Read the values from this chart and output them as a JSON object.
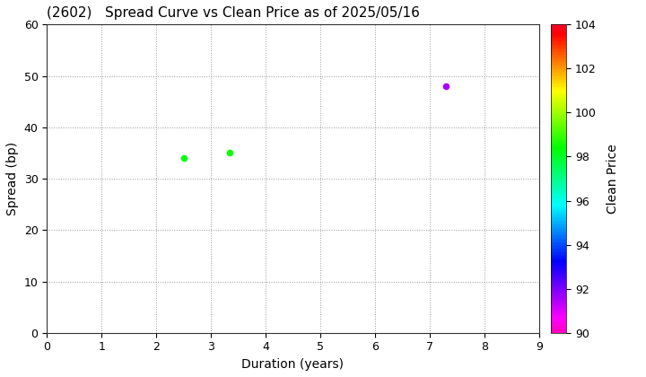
{
  "title": "(2602)   Spread Curve vs Clean Price as of 2025/05/16",
  "xlabel": "Duration (years)",
  "ylabel": "Spread (bp)",
  "colorbar_label": "Clean Price",
  "xlim": [
    0,
    9
  ],
  "ylim": [
    0,
    60
  ],
  "xticks": [
    0,
    1,
    2,
    3,
    4,
    5,
    6,
    7,
    8,
    9
  ],
  "yticks": [
    0,
    10,
    20,
    30,
    40,
    50,
    60
  ],
  "colorbar_min": 90,
  "colorbar_max": 104,
  "colorbar_ticks": [
    90,
    92,
    94,
    96,
    98,
    100,
    102,
    104
  ],
  "points": [
    {
      "duration": 2.5,
      "spread": 34,
      "clean_price": 98.3
    },
    {
      "duration": 3.35,
      "spread": 35,
      "clean_price": 98.5
    },
    {
      "duration": 7.3,
      "spread": 48,
      "clean_price": 91.5
    }
  ],
  "marker_size": 20,
  "background_color": "#ffffff",
  "grid_color": "#999999",
  "grid_style": "dotted",
  "figsize": [
    7.2,
    4.2
  ],
  "dpi": 100
}
